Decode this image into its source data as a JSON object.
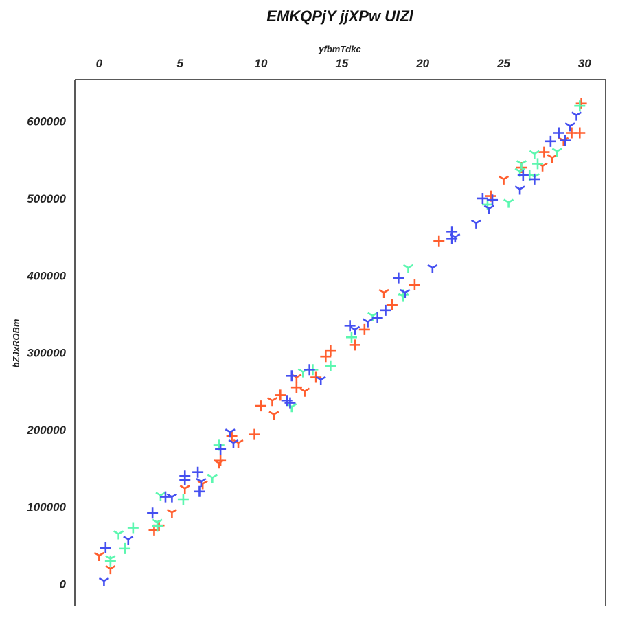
{
  "chart_data": {
    "type": "scatter",
    "title": "EMKQPjY jjXPw UIZl",
    "xlabel": "yfbmTdkc",
    "ylabel": "bZJxROBm",
    "x_axis_position": "top",
    "xlim": [
      -1.5,
      31.3
    ],
    "ylim": [
      -28000,
      654000
    ],
    "x_ticks": [
      0,
      5,
      10,
      15,
      20,
      25,
      30
    ],
    "y_ticks": [
      0,
      100000,
      200000,
      300000,
      400000,
      500000,
      600000
    ],
    "grid": false,
    "legend": "none",
    "series": [
      {
        "color": "#ff5e2e",
        "points": [
          {
            "x": 29.8,
            "y": 623000,
            "m": "plus"
          },
          {
            "x": 29.7,
            "y": 585000,
            "m": "plus"
          },
          {
            "x": 29.2,
            "y": 585000,
            "m": "plus"
          },
          {
            "x": 28.7,
            "y": 575000,
            "m": "tri"
          },
          {
            "x": 27.5,
            "y": 560000,
            "m": "plus"
          },
          {
            "x": 28.0,
            "y": 553000,
            "m": "tri"
          },
          {
            "x": 27.4,
            "y": 542000,
            "m": "tri"
          },
          {
            "x": 26.1,
            "y": 540000,
            "m": "plus"
          },
          {
            "x": 25.0,
            "y": 525000,
            "m": "tri"
          },
          {
            "x": 24.2,
            "y": 503000,
            "m": "plus"
          },
          {
            "x": 21.0,
            "y": 445000,
            "m": "plus"
          },
          {
            "x": 19.5,
            "y": 388000,
            "m": "plus"
          },
          {
            "x": 17.6,
            "y": 378000,
            "m": "tri"
          },
          {
            "x": 18.1,
            "y": 362000,
            "m": "plus"
          },
          {
            "x": 16.4,
            "y": 330000,
            "m": "plus"
          },
          {
            "x": 15.8,
            "y": 310000,
            "m": "plus"
          },
          {
            "x": 14.3,
            "y": 303000,
            "m": "plus"
          },
          {
            "x": 14.0,
            "y": 295000,
            "m": "plus"
          },
          {
            "x": 13.4,
            "y": 268000,
            "m": "plus"
          },
          {
            "x": 12.2,
            "y": 268000,
            "m": "tri"
          },
          {
            "x": 12.2,
            "y": 255000,
            "m": "plus"
          },
          {
            "x": 12.7,
            "y": 250000,
            "m": "tri"
          },
          {
            "x": 11.2,
            "y": 245000,
            "m": "plus"
          },
          {
            "x": 10.7,
            "y": 238000,
            "m": "tri"
          },
          {
            "x": 10.0,
            "y": 231000,
            "m": "plus"
          },
          {
            "x": 10.8,
            "y": 220000,
            "m": "tri"
          },
          {
            "x": 9.6,
            "y": 194000,
            "m": "plus"
          },
          {
            "x": 8.2,
            "y": 192000,
            "m": "plus"
          },
          {
            "x": 8.6,
            "y": 183000,
            "m": "tri"
          },
          {
            "x": 7.5,
            "y": 160000,
            "m": "plus"
          },
          {
            "x": 7.4,
            "y": 157000,
            "m": "tri"
          },
          {
            "x": 6.4,
            "y": 130000,
            "m": "tri"
          },
          {
            "x": 5.3,
            "y": 124000,
            "m": "tri"
          },
          {
            "x": 4.5,
            "y": 93000,
            "m": "tri"
          },
          {
            "x": 3.4,
            "y": 70000,
            "m": "plus"
          },
          {
            "x": 3.7,
            "y": 76000,
            "m": "plus"
          },
          {
            "x": 0.0,
            "y": 37000,
            "m": "tri"
          },
          {
            "x": 0.7,
            "y": 20000,
            "m": "tri"
          }
        ]
      },
      {
        "color": "#5cf7b0",
        "points": [
          {
            "x": 29.7,
            "y": 620000,
            "m": "plus"
          },
          {
            "x": 28.3,
            "y": 561000,
            "m": "tri"
          },
          {
            "x": 26.9,
            "y": 558000,
            "m": "tri"
          },
          {
            "x": 27.1,
            "y": 545000,
            "m": "plus"
          },
          {
            "x": 26.1,
            "y": 545000,
            "m": "tri"
          },
          {
            "x": 26.0,
            "y": 535000,
            "m": "tri"
          },
          {
            "x": 26.6,
            "y": 530000,
            "m": "plus"
          },
          {
            "x": 26.9,
            "y": 528000,
            "m": "tri"
          },
          {
            "x": 25.3,
            "y": 495000,
            "m": "tri"
          },
          {
            "x": 24.0,
            "y": 492000,
            "m": "plus"
          },
          {
            "x": 19.1,
            "y": 410000,
            "m": "tri"
          },
          {
            "x": 18.8,
            "y": 375000,
            "m": "plus"
          },
          {
            "x": 18.8,
            "y": 373000,
            "m": "tri"
          },
          {
            "x": 16.9,
            "y": 348000,
            "m": "tri"
          },
          {
            "x": 15.6,
            "y": 320000,
            "m": "plus"
          },
          {
            "x": 14.3,
            "y": 283000,
            "m": "plus"
          },
          {
            "x": 13.2,
            "y": 278000,
            "m": "plus"
          },
          {
            "x": 12.6,
            "y": 275000,
            "m": "tri"
          },
          {
            "x": 11.9,
            "y": 230000,
            "m": "tri"
          },
          {
            "x": 7.4,
            "y": 180000,
            "m": "plus"
          },
          {
            "x": 7.0,
            "y": 138000,
            "m": "tri"
          },
          {
            "x": 3.8,
            "y": 115000,
            "m": "tri"
          },
          {
            "x": 5.2,
            "y": 110000,
            "m": "plus"
          },
          {
            "x": 3.6,
            "y": 80000,
            "m": "tri"
          },
          {
            "x": 3.6,
            "y": 75000,
            "m": "plus"
          },
          {
            "x": 2.1,
            "y": 73000,
            "m": "plus"
          },
          {
            "x": 1.2,
            "y": 65000,
            "m": "tri"
          },
          {
            "x": 1.6,
            "y": 46000,
            "m": "plus"
          },
          {
            "x": 0.7,
            "y": 33000,
            "m": "tri"
          },
          {
            "x": 0.7,
            "y": 30000,
            "m": "plus"
          }
        ]
      },
      {
        "color": "#444ff0",
        "points": [
          {
            "x": 29.5,
            "y": 608000,
            "m": "tri"
          },
          {
            "x": 29.1,
            "y": 594000,
            "m": "tri"
          },
          {
            "x": 28.4,
            "y": 585000,
            "m": "plus"
          },
          {
            "x": 28.8,
            "y": 575000,
            "m": "plus"
          },
          {
            "x": 27.9,
            "y": 574000,
            "m": "plus"
          },
          {
            "x": 26.2,
            "y": 530000,
            "m": "plus"
          },
          {
            "x": 26.9,
            "y": 525000,
            "m": "plus"
          },
          {
            "x": 26.0,
            "y": 512000,
            "m": "tri"
          },
          {
            "x": 23.7,
            "y": 500000,
            "m": "plus"
          },
          {
            "x": 24.3,
            "y": 498000,
            "m": "plus"
          },
          {
            "x": 24.1,
            "y": 487000,
            "m": "tri"
          },
          {
            "x": 23.3,
            "y": 468000,
            "m": "tri"
          },
          {
            "x": 21.8,
            "y": 457000,
            "m": "plus"
          },
          {
            "x": 21.8,
            "y": 448000,
            "m": "plus"
          },
          {
            "x": 22.0,
            "y": 450000,
            "m": "tri"
          },
          {
            "x": 20.6,
            "y": 410000,
            "m": "tri"
          },
          {
            "x": 18.5,
            "y": 397000,
            "m": "plus"
          },
          {
            "x": 18.9,
            "y": 378000,
            "m": "tri"
          },
          {
            "x": 17.7,
            "y": 355000,
            "m": "plus"
          },
          {
            "x": 17.2,
            "y": 345000,
            "m": "plus"
          },
          {
            "x": 16.6,
            "y": 340000,
            "m": "tri"
          },
          {
            "x": 15.5,
            "y": 335000,
            "m": "plus"
          },
          {
            "x": 15.8,
            "y": 330000,
            "m": "tri"
          },
          {
            "x": 13.0,
            "y": 278000,
            "m": "plus"
          },
          {
            "x": 13.7,
            "y": 265000,
            "m": "tri"
          },
          {
            "x": 11.9,
            "y": 270000,
            "m": "plus"
          },
          {
            "x": 11.6,
            "y": 238000,
            "m": "plus"
          },
          {
            "x": 11.8,
            "y": 235000,
            "m": "plus"
          },
          {
            "x": 8.1,
            "y": 197000,
            "m": "tri"
          },
          {
            "x": 8.3,
            "y": 183000,
            "m": "tri"
          },
          {
            "x": 7.5,
            "y": 175000,
            "m": "plus"
          },
          {
            "x": 6.1,
            "y": 145000,
            "m": "plus"
          },
          {
            "x": 5.3,
            "y": 140000,
            "m": "plus"
          },
          {
            "x": 5.3,
            "y": 135000,
            "m": "plus"
          },
          {
            "x": 6.3,
            "y": 133000,
            "m": "tri"
          },
          {
            "x": 6.2,
            "y": 120000,
            "m": "plus"
          },
          {
            "x": 4.1,
            "y": 113000,
            "m": "plus"
          },
          {
            "x": 4.5,
            "y": 113000,
            "m": "tri"
          },
          {
            "x": 3.3,
            "y": 92000,
            "m": "plus"
          },
          {
            "x": 1.8,
            "y": 58000,
            "m": "tri"
          },
          {
            "x": 0.4,
            "y": 47000,
            "m": "plus"
          },
          {
            "x": 0.3,
            "y": 4000,
            "m": "tri"
          }
        ]
      }
    ]
  }
}
